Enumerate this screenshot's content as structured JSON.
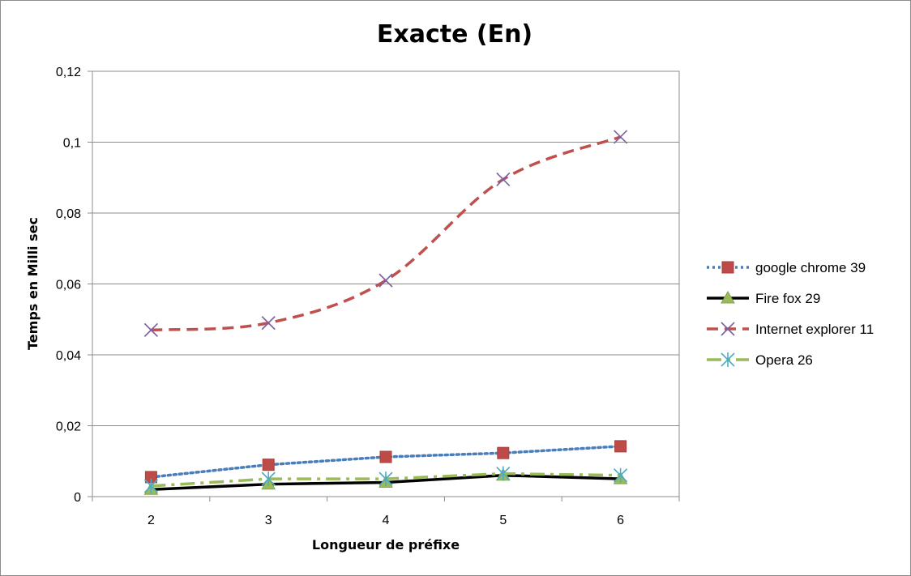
{
  "chart_data": {
    "type": "line",
    "title": "Exacte (En)",
    "xlabel": "Longueur de préfixe",
    "ylabel": "Temps en Milli sec",
    "categories": [
      "2",
      "3",
      "4",
      "5",
      "6"
    ],
    "ylim": [
      0,
      0.12
    ],
    "yticks": [
      0,
      0.02,
      0.04,
      0.06,
      0.08,
      0.1,
      0.12
    ],
    "ytick_labels": [
      "0",
      "0,02",
      "0,04",
      "0,06",
      "0,08",
      "0,1",
      "0,12"
    ],
    "grid": true,
    "legend_position": "right",
    "series": [
      {
        "name": "google chrome 39",
        "values": [
          0.0055,
          0.009,
          0.0112,
          0.0123,
          0.0142
        ],
        "color": "#4a7ebb",
        "marker": "square",
        "marker_color": "#be4b48",
        "dash": "dot",
        "smooth": false
      },
      {
        "name": "Fire fox 29",
        "values": [
          0.002,
          0.0035,
          0.004,
          0.006,
          0.005
        ],
        "color": "#000000",
        "marker": "triangle",
        "marker_color": "#9bbb59",
        "dash": "solid",
        "smooth": false
      },
      {
        "name": "Internet explorer 11",
        "values": [
          0.047,
          0.049,
          0.061,
          0.0895,
          0.1015
        ],
        "color": "#c0504d",
        "marker": "x",
        "marker_color": "#7d60a0",
        "dash": "dash",
        "smooth": true
      },
      {
        "name": "Opera 26",
        "values": [
          0.003,
          0.005,
          0.005,
          0.0065,
          0.006
        ],
        "color": "#9bbb59",
        "marker": "star",
        "marker_color": "#4bacc6",
        "dash": "dashdot",
        "smooth": false
      }
    ]
  }
}
